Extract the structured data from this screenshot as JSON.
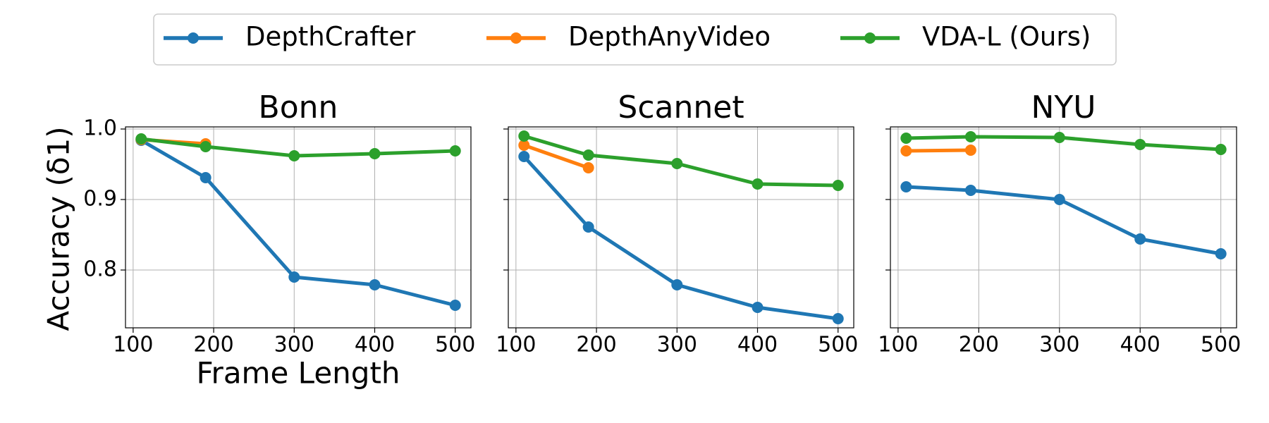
{
  "chart_data": [
    {
      "type": "line",
      "title": "Bonn",
      "xlabel": "Frame Length",
      "ylabel": "Accuracy (δ1)",
      "x": [
        110,
        190,
        300,
        400,
        500
      ],
      "xlim": [
        90.5,
        519.5
      ],
      "xticks": [
        100,
        200,
        300,
        400,
        500
      ],
      "ylim": [
        0.718,
        1.003
      ],
      "yticks": [
        0.8,
        0.9,
        {
          "value": 1,
          "label": "1.0"
        }
      ],
      "grid": true,
      "series": [
        {
          "name": "DepthCrafter",
          "color": "#1f77b4",
          "values": [
            0.984,
            0.931,
            0.79,
            0.779,
            0.75
          ]
        },
        {
          "name": "DepthAnyVideo",
          "color": "#ff7f0e",
          "values": [
            0.985,
            0.979,
            null,
            null,
            null
          ]
        },
        {
          "name": "VDA-L (Ours)",
          "color": "#2ca02c",
          "values": [
            0.986,
            0.975,
            0.962,
            0.965,
            0.969
          ]
        }
      ]
    },
    {
      "type": "line",
      "title": "Scannet",
      "x": [
        110,
        190,
        300,
        400,
        500
      ],
      "xlim": [
        90.5,
        519.5
      ],
      "xticks": [
        100,
        200,
        300,
        400,
        500
      ],
      "series": [
        {
          "values": [
            0.961,
            0.861,
            0.779,
            0.747,
            0.731
          ]
        },
        {
          "values": [
            0.977,
            0.945,
            null,
            null,
            null
          ]
        },
        {
          "values": [
            0.99,
            0.963,
            0.951,
            0.922,
            0.92
          ]
        }
      ]
    },
    {
      "type": "line",
      "title": "NYU",
      "x": [
        110,
        190,
        300,
        400,
        500
      ],
      "xlim": [
        90.5,
        519.5
      ],
      "xticks": [
        100,
        200,
        300,
        400,
        500
      ],
      "series": [
        {
          "values": [
            0.918,
            0.913,
            0.9,
            0.844,
            0.823
          ]
        },
        {
          "values": [
            0.969,
            0.97,
            null,
            null,
            null
          ]
        },
        {
          "values": [
            0.987,
            0.989,
            0.988,
            0.978,
            0.971
          ]
        }
      ]
    }
  ]
}
